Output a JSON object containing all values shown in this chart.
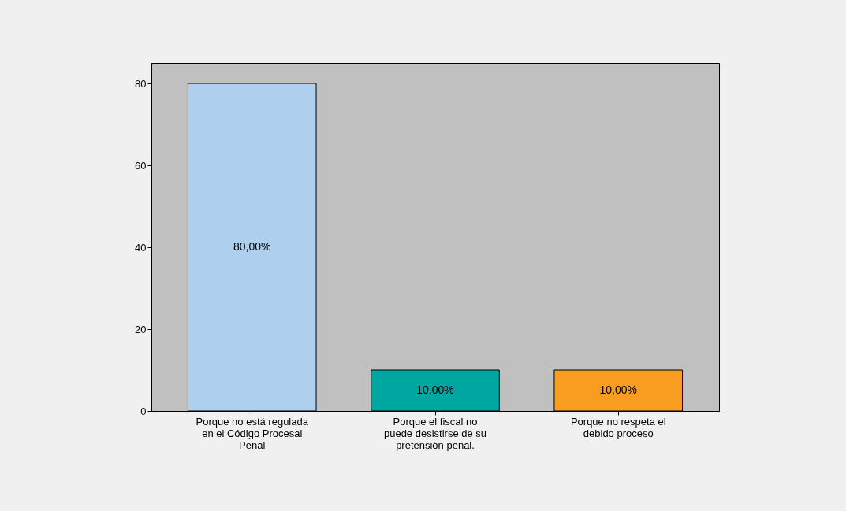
{
  "chart_data": {
    "type": "bar",
    "categories": [
      "Porque no está regulada en el Código Procesal Penal",
      "Porque el fiscal no puede desistirse de su pretensión penal.",
      "Porque no respeta el debido proceso"
    ],
    "values": [
      80,
      10,
      10
    ],
    "colors": [
      "#aecfee",
      "#00a6a0",
      "#f99d20"
    ],
    "value_labels": [
      "80,00%",
      "10,00%",
      "10,00%"
    ],
    "ylim": [
      0,
      85
    ],
    "yticks": [
      0,
      20,
      40,
      60,
      80
    ],
    "grid": false,
    "legend": false
  }
}
